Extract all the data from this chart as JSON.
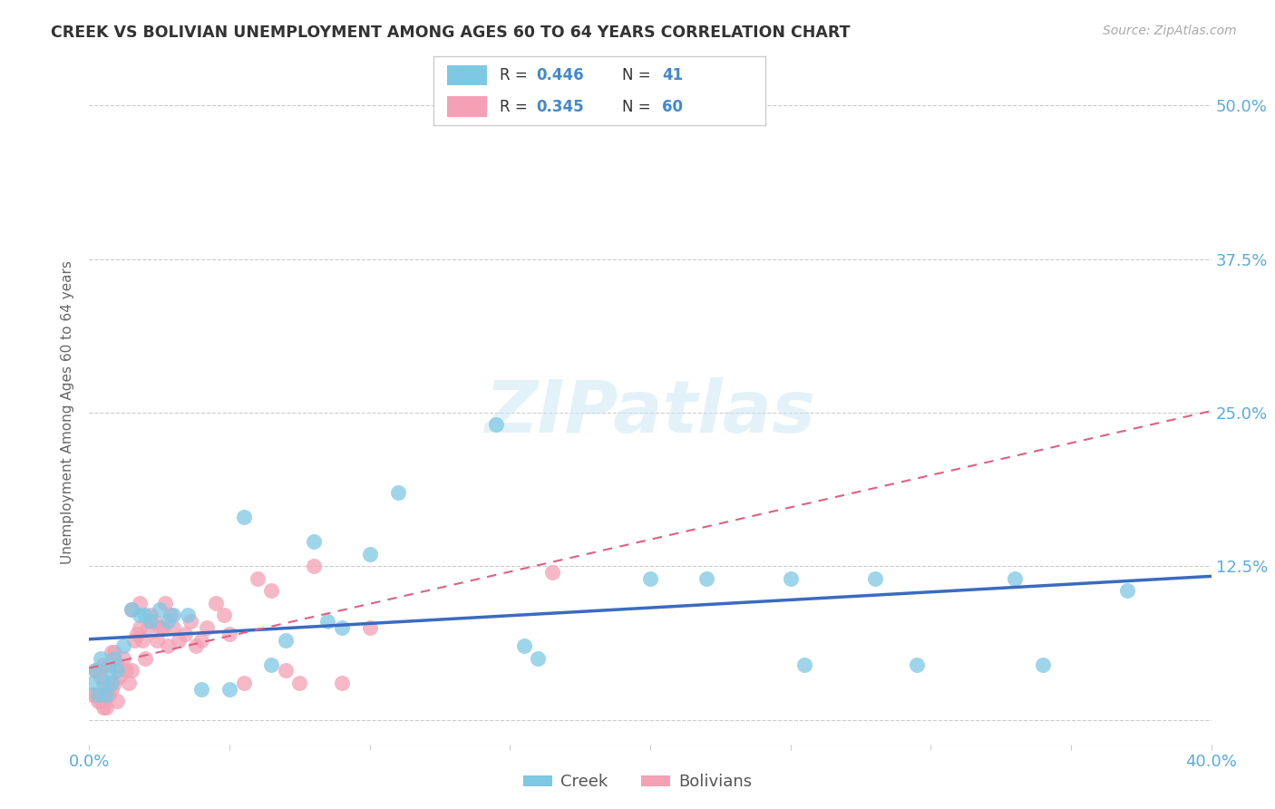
{
  "title": "CREEK VS BOLIVIAN UNEMPLOYMENT AMONG AGES 60 TO 64 YEARS CORRELATION CHART",
  "source": "Source: ZipAtlas.com",
  "ylabel": "Unemployment Among Ages 60 to 64 years",
  "xlim": [
    0.0,
    0.4
  ],
  "ylim": [
    -0.02,
    0.52
  ],
  "xticks": [
    0.0,
    0.05,
    0.1,
    0.15,
    0.2,
    0.25,
    0.3,
    0.35,
    0.4
  ],
  "xticklabels": [
    "0.0%",
    "",
    "",
    "",
    "",
    "",
    "",
    "",
    "40.0%"
  ],
  "yticks": [
    0.0,
    0.125,
    0.25,
    0.375,
    0.5
  ],
  "yticklabels": [
    "",
    "12.5%",
    "25.0%",
    "37.5%",
    "50.0%"
  ],
  "grid_color": "#cccccc",
  "background_color": "#ffffff",
  "creek_color": "#7ec8e3",
  "bolivian_color": "#f4a0b5",
  "creek_line_color": "#3a6bbf",
  "bolivian_line_color": "#e06080",
  "creek_R": 0.446,
  "creek_N": 41,
  "bolivian_R": 0.345,
  "bolivian_N": 60,
  "legend_label_creek": "Creek",
  "legend_label_bolivian": "Bolivians",
  "watermark_text": "ZIPatlas",
  "creek_x": [
    0.001,
    0.002,
    0.003,
    0.004,
    0.005,
    0.006,
    0.007,
    0.008,
    0.009,
    0.01,
    0.012,
    0.015,
    0.018,
    0.02,
    0.022,
    0.025,
    0.028,
    0.03,
    0.035,
    0.04,
    0.05,
    0.055,
    0.065,
    0.07,
    0.08,
    0.085,
    0.09,
    0.1,
    0.11,
    0.145,
    0.155,
    0.16,
    0.2,
    0.22,
    0.25,
    0.255,
    0.28,
    0.295,
    0.33,
    0.34,
    0.37
  ],
  "creek_y": [
    0.03,
    0.04,
    0.02,
    0.05,
    0.03,
    0.02,
    0.04,
    0.03,
    0.05,
    0.04,
    0.06,
    0.09,
    0.085,
    0.085,
    0.08,
    0.09,
    0.08,
    0.085,
    0.085,
    0.025,
    0.025,
    0.165,
    0.045,
    0.065,
    0.145,
    0.08,
    0.075,
    0.135,
    0.185,
    0.24,
    0.06,
    0.05,
    0.115,
    0.115,
    0.115,
    0.045,
    0.115,
    0.045,
    0.115,
    0.045,
    0.105
  ],
  "bolivian_x": [
    0.001,
    0.002,
    0.002,
    0.003,
    0.003,
    0.004,
    0.004,
    0.005,
    0.005,
    0.005,
    0.006,
    0.006,
    0.007,
    0.007,
    0.008,
    0.008,
    0.009,
    0.009,
    0.01,
    0.01,
    0.011,
    0.012,
    0.013,
    0.014,
    0.015,
    0.015,
    0.016,
    0.017,
    0.018,
    0.018,
    0.019,
    0.02,
    0.021,
    0.022,
    0.023,
    0.024,
    0.025,
    0.026,
    0.027,
    0.028,
    0.029,
    0.03,
    0.032,
    0.034,
    0.036,
    0.038,
    0.04,
    0.042,
    0.045,
    0.048,
    0.05,
    0.055,
    0.06,
    0.065,
    0.07,
    0.075,
    0.08,
    0.09,
    0.1,
    0.165
  ],
  "bolivian_y": [
    0.02,
    0.02,
    0.04,
    0.015,
    0.04,
    0.015,
    0.035,
    0.02,
    0.01,
    0.045,
    0.01,
    0.03,
    0.02,
    0.045,
    0.025,
    0.055,
    0.03,
    0.055,
    0.015,
    0.045,
    0.035,
    0.05,
    0.04,
    0.03,
    0.04,
    0.09,
    0.065,
    0.07,
    0.075,
    0.095,
    0.065,
    0.05,
    0.075,
    0.085,
    0.08,
    0.065,
    0.075,
    0.075,
    0.095,
    0.06,
    0.085,
    0.075,
    0.065,
    0.07,
    0.08,
    0.06,
    0.065,
    0.075,
    0.095,
    0.085,
    0.07,
    0.03,
    0.115,
    0.105,
    0.04,
    0.03,
    0.125,
    0.03,
    0.075,
    0.12
  ]
}
